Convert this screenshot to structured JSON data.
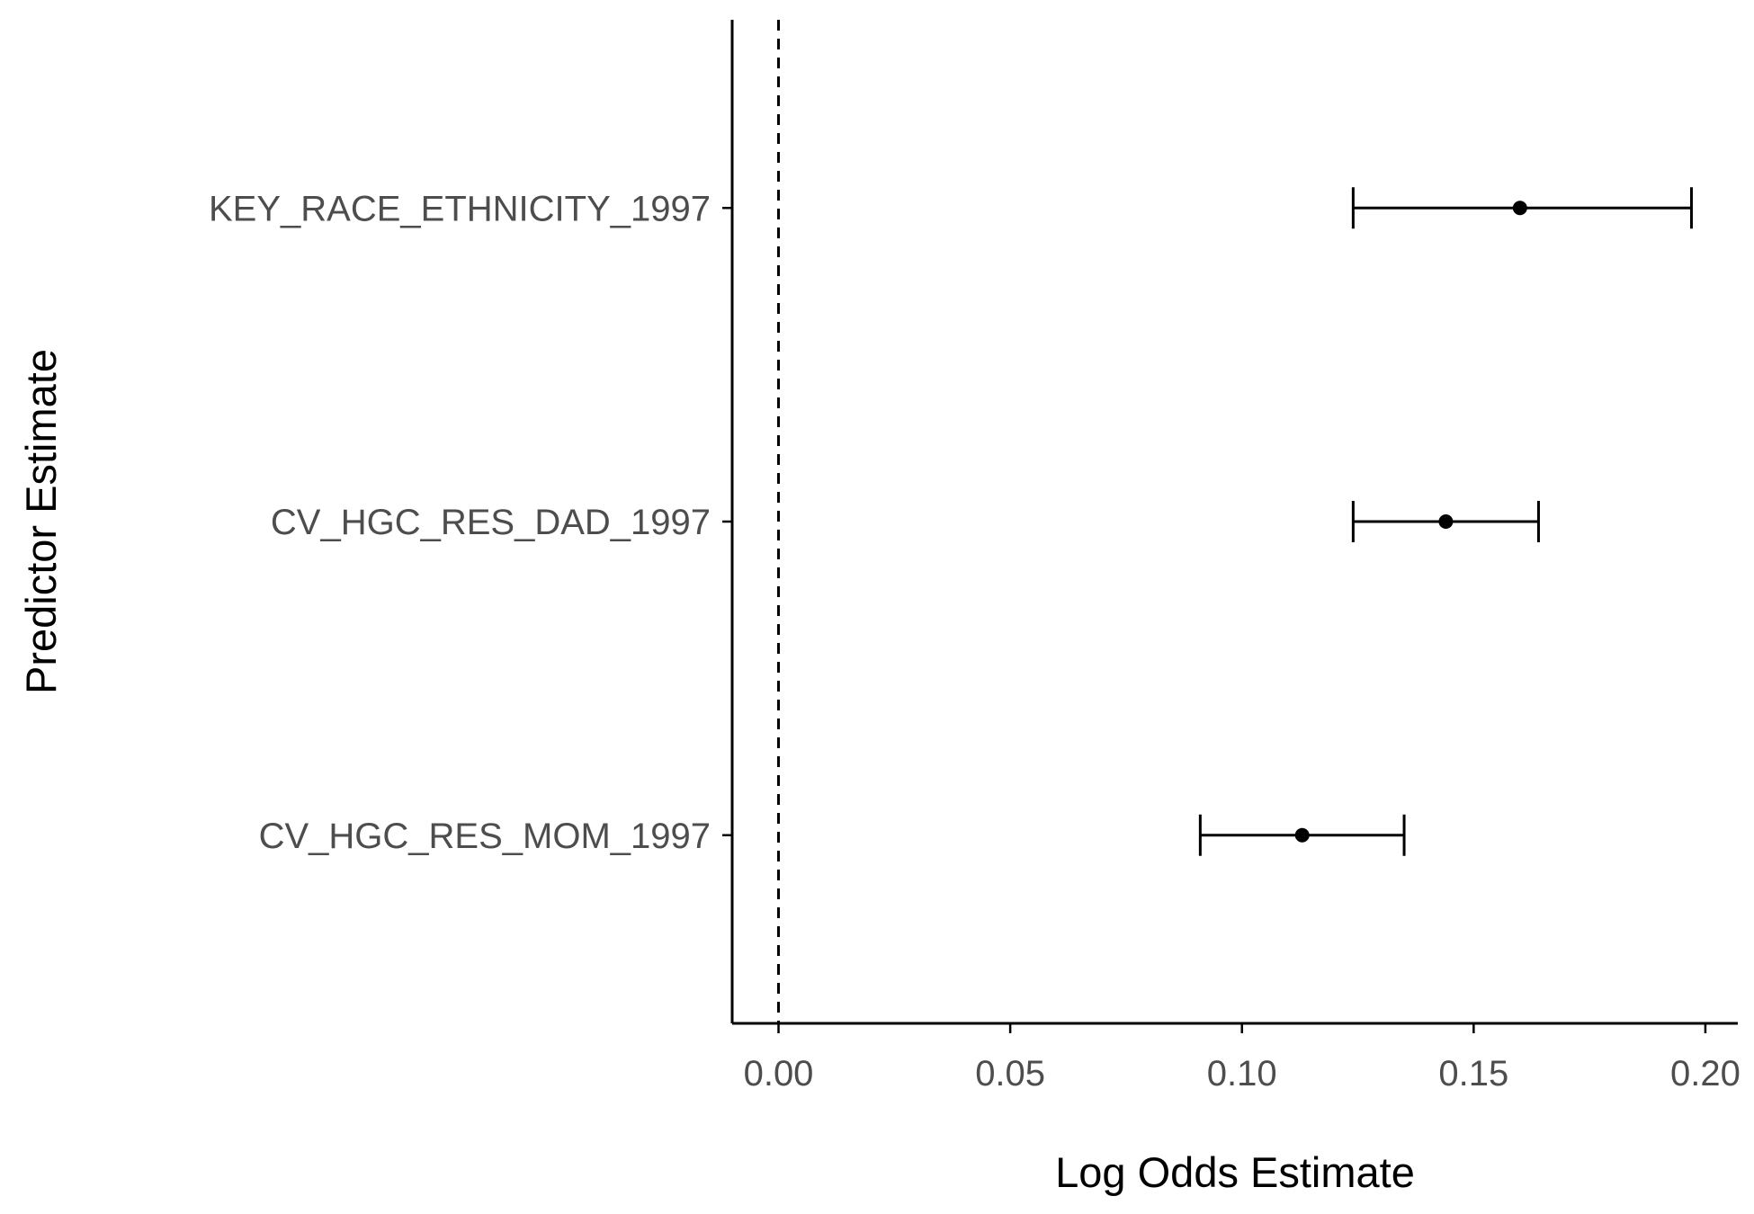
{
  "chart_data": {
    "type": "forest",
    "xlabel": "Log Odds Estimate",
    "ylabel": "Predictor Estimate",
    "xlim": [
      -0.01,
      0.207
    ],
    "x_ticks": [
      {
        "value": 0.0,
        "label": "0.00"
      },
      {
        "value": 0.05,
        "label": "0.05"
      },
      {
        "value": 0.1,
        "label": "0.10"
      },
      {
        "value": 0.15,
        "label": "0.15"
      },
      {
        "value": 0.2,
        "label": "0.20"
      }
    ],
    "reference_line": 0,
    "grid": false,
    "legend": "none",
    "estimates": [
      {
        "name": "KEY_RACE_ETHNICITY_1997",
        "estimate": 0.16,
        "lower": 0.124,
        "upper": 0.197
      },
      {
        "name": "CV_HGC_RES_DAD_1997",
        "estimate": 0.144,
        "lower": 0.124,
        "upper": 0.164
      },
      {
        "name": "CV_HGC_RES_MOM_1997",
        "estimate": 0.113,
        "lower": 0.091,
        "upper": 0.135
      }
    ],
    "colors": {
      "marks": "#000000",
      "tick_text": "#4d4d4d",
      "axis": "#000000"
    }
  }
}
